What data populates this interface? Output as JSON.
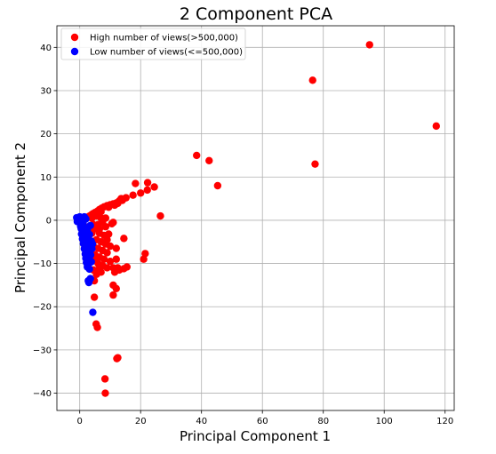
{
  "chart_data": {
    "type": "scatter",
    "title": "2 Component PCA",
    "xlabel": "Principal Component 1",
    "ylabel": "Principal Component 2",
    "xlim": [
      -7.5,
      123
    ],
    "ylim": [
      -44,
      45
    ],
    "xticks": [
      0,
      20,
      40,
      60,
      80,
      100,
      120
    ],
    "yticks": [
      -40,
      -30,
      -20,
      -10,
      0,
      10,
      20,
      30,
      40
    ],
    "grid": true,
    "legend_position": "top-left",
    "series": [
      {
        "name": "High number of views(>500,000)",
        "color": "#ff0000",
        "points": [
          [
            95.2,
            40.6
          ],
          [
            76.5,
            32.4
          ],
          [
            117.1,
            21.8
          ],
          [
            77.3,
            13.0
          ],
          [
            38.4,
            15.0
          ],
          [
            42.5,
            13.8
          ],
          [
            45.3,
            8.0
          ],
          [
            18.3,
            8.5
          ],
          [
            22.3,
            8.7
          ],
          [
            24.5,
            7.7
          ],
          [
            22.2,
            7.0
          ],
          [
            20.0,
            6.3
          ],
          [
            17.5,
            5.8
          ],
          [
            15.2,
            5.2
          ],
          [
            13.6,
            5.0
          ],
          [
            13.0,
            4.5
          ],
          [
            12.0,
            4.0
          ],
          [
            11.0,
            3.8
          ],
          [
            10.0,
            3.6
          ],
          [
            9.0,
            3.4
          ],
          [
            8.0,
            3.1
          ],
          [
            7.2,
            2.8
          ],
          [
            6.5,
            2.5
          ],
          [
            5.8,
            2.1
          ],
          [
            5.0,
            1.8
          ],
          [
            4.3,
            1.5
          ],
          [
            3.7,
            1.2
          ],
          [
            3.0,
            0.9
          ],
          [
            2.5,
            0.6
          ],
          [
            2.0,
            0.4
          ],
          [
            26.5,
            1.0
          ],
          [
            4.0,
            0.5
          ],
          [
            5.5,
            1.0
          ],
          [
            7.0,
            2.0
          ],
          [
            9.5,
            3.0
          ],
          [
            11.5,
            3.5
          ],
          [
            12.5,
            3.9
          ],
          [
            14.0,
            4.6
          ],
          [
            6.0,
            -1.0
          ],
          [
            7.5,
            -0.5
          ],
          [
            8.5,
            -1.5
          ],
          [
            10.5,
            -0.8
          ],
          [
            5.0,
            -2.0
          ],
          [
            6.5,
            -3.0
          ],
          [
            8.0,
            -3.5
          ],
          [
            9.5,
            -3.2
          ],
          [
            5.5,
            -4.5
          ],
          [
            7.0,
            -5.0
          ],
          [
            8.5,
            -5.5
          ],
          [
            10.0,
            -6.0
          ],
          [
            4.5,
            -6.0
          ],
          [
            6.0,
            -6.5
          ],
          [
            7.5,
            -7.0
          ],
          [
            9.0,
            -7.5
          ],
          [
            12.0,
            -6.5
          ],
          [
            14.5,
            -4.2
          ],
          [
            5.0,
            -8.0
          ],
          [
            6.5,
            -8.5
          ],
          [
            8.0,
            -9.0
          ],
          [
            10.0,
            -9.5
          ],
          [
            12.0,
            -9.0
          ],
          [
            6.0,
            -10.0
          ],
          [
            7.5,
            -10.5
          ],
          [
            9.0,
            -11.0
          ],
          [
            11.0,
            -11.0
          ],
          [
            12.5,
            -11.0
          ],
          [
            11.5,
            -12.0
          ],
          [
            13.0,
            -11.5
          ],
          [
            14.5,
            -11.2
          ],
          [
            15.5,
            -10.8
          ],
          [
            4.5,
            -11.5
          ],
          [
            5.5,
            -12.5
          ],
          [
            4.8,
            -14.0
          ],
          [
            11.0,
            -15.0
          ],
          [
            12.0,
            -15.8
          ],
          [
            11.0,
            -17.3
          ],
          [
            4.8,
            -17.8
          ],
          [
            5.4,
            -24.0
          ],
          [
            5.8,
            -24.8
          ],
          [
            12.2,
            -32.0
          ],
          [
            12.5,
            -31.8
          ],
          [
            8.3,
            -36.7
          ],
          [
            8.4,
            -40.0
          ],
          [
            21.0,
            -9.0
          ],
          [
            21.5,
            -7.7
          ],
          [
            4.0,
            -3.0
          ],
          [
            3.5,
            -5.0
          ],
          [
            4.0,
            -8.5
          ],
          [
            5.0,
            -9.0
          ],
          [
            6.0,
            -11.5
          ],
          [
            7.0,
            -12.0
          ],
          [
            3.0,
            -1.5
          ],
          [
            4.5,
            -1.0
          ],
          [
            7.0,
            0.5
          ],
          [
            8.5,
            0.5
          ],
          [
            11.0,
            -0.5
          ],
          [
            6.5,
            -2.0
          ],
          [
            9.0,
            -4.5
          ]
        ]
      },
      {
        "name": "Low number of views(<=500,000)",
        "color": "#0000ff",
        "points": [
          [
            -1.0,
            0.6
          ],
          [
            -0.5,
            0.3
          ],
          [
            0.0,
            0.2
          ],
          [
            0.5,
            0.5
          ],
          [
            1.0,
            0.4
          ],
          [
            1.5,
            0.8
          ],
          [
            2.0,
            0.3
          ],
          [
            -0.8,
            -0.3
          ],
          [
            0.2,
            -0.5
          ],
          [
            0.8,
            -1.0
          ],
          [
            1.3,
            -1.4
          ],
          [
            0.5,
            -2.0
          ],
          [
            1.0,
            -2.4
          ],
          [
            1.6,
            -2.8
          ],
          [
            0.6,
            -3.2
          ],
          [
            1.2,
            -3.7
          ],
          [
            2.0,
            -3.9
          ],
          [
            0.9,
            -4.3
          ],
          [
            1.5,
            -4.6
          ],
          [
            2.2,
            -5.0
          ],
          [
            1.2,
            -5.4
          ],
          [
            1.8,
            -5.8
          ],
          [
            2.5,
            -6.2
          ],
          [
            1.5,
            -6.6
          ],
          [
            2.0,
            -7.0
          ],
          [
            2.8,
            -7.4
          ],
          [
            1.8,
            -7.8
          ],
          [
            2.4,
            -8.2
          ],
          [
            3.2,
            -8.4
          ],
          [
            2.0,
            -8.8
          ],
          [
            2.6,
            -9.2
          ],
          [
            3.6,
            -8.0
          ],
          [
            2.2,
            -9.8
          ],
          [
            2.9,
            -10.2
          ],
          [
            3.8,
            -9.6
          ],
          [
            2.5,
            -10.8
          ],
          [
            3.2,
            -11.3
          ],
          [
            4.0,
            -6.6
          ],
          [
            3.5,
            -13.5
          ],
          [
            2.8,
            -14.0
          ],
          [
            3.0,
            -14.4
          ],
          [
            4.3,
            -21.3
          ],
          [
            0.3,
            -1.4
          ],
          [
            1.1,
            -0.7
          ],
          [
            2.5,
            -2.2
          ],
          [
            3.2,
            -3.3
          ],
          [
            3.8,
            -4.8
          ],
          [
            4.2,
            -5.5
          ],
          [
            3.5,
            -1.2
          ],
          [
            0.0,
            0.8
          ]
        ]
      }
    ]
  }
}
